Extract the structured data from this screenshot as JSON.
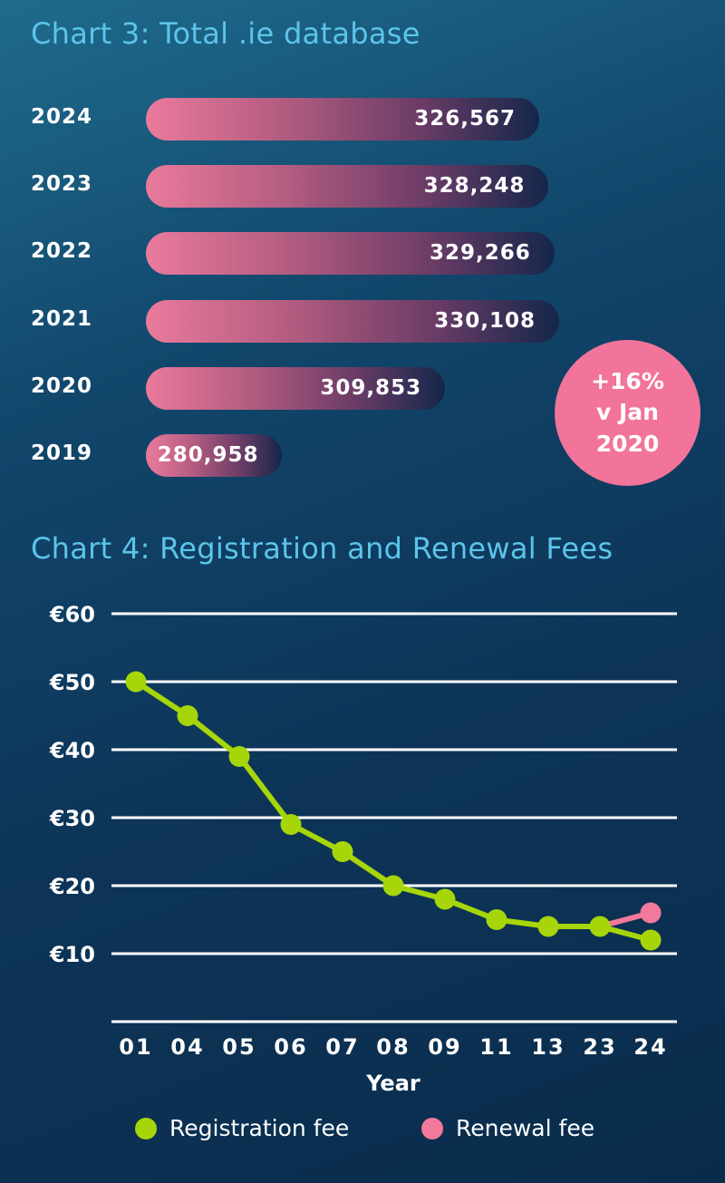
{
  "chart_data": [
    {
      "type": "bar",
      "orientation": "horizontal",
      "title": "Chart 3: Total .ie database",
      "categories": [
        "2024",
        "2023",
        "2022",
        "2021",
        "2020",
        "2019"
      ],
      "values": [
        326567,
        328248,
        329266,
        330108,
        309853,
        280958
      ],
      "value_labels": [
        "326,567",
        "328,248",
        "329,266",
        "330,108",
        "309,853",
        "280,958"
      ],
      "annotation": [
        "+16%",
        "v Jan",
        "2020"
      ]
    },
    {
      "type": "line",
      "title": "Chart 4: Registration and Renewal Fees",
      "xlabel": "Year",
      "ylabel": "",
      "categories": [
        "01",
        "04",
        "05",
        "06",
        "07",
        "08",
        "09",
        "11",
        "13",
        "23",
        "24"
      ],
      "y_ticks": [
        "€60",
        "€50",
        "€40",
        "€30",
        "€20",
        "€10"
      ],
      "y_tick_values": [
        60,
        50,
        40,
        30,
        20,
        10
      ],
      "ylim": [
        0,
        60
      ],
      "grid": true,
      "legend_position": "bottom",
      "series": [
        {
          "name": "Registration fee",
          "color": "#a6d609",
          "values": [
            50,
            45,
            39,
            29,
            25,
            20,
            18,
            15,
            14,
            14,
            12
          ]
        },
        {
          "name": "Renewal fee",
          "color": "#f2799b",
          "values": [
            null,
            null,
            null,
            null,
            null,
            null,
            null,
            null,
            null,
            14,
            16
          ]
        }
      ]
    }
  ]
}
